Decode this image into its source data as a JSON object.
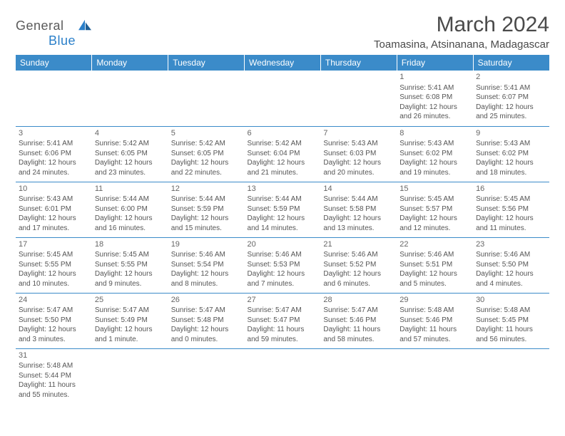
{
  "logo": {
    "text1": "General",
    "text2": "Blue"
  },
  "title": "March 2024",
  "location": "Toamasina, Atsinanana, Madagascar",
  "header_bg": "#3b8bc9",
  "header_fg": "#ffffff",
  "border_color": "#3b8bc9",
  "text_color": "#555555",
  "weekdays": [
    "Sunday",
    "Monday",
    "Tuesday",
    "Wednesday",
    "Thursday",
    "Friday",
    "Saturday"
  ],
  "weeks": [
    [
      null,
      null,
      null,
      null,
      null,
      {
        "d": "1",
        "sr": "Sunrise: 5:41 AM",
        "ss": "Sunset: 6:08 PM",
        "dl1": "Daylight: 12 hours",
        "dl2": "and 26 minutes."
      },
      {
        "d": "2",
        "sr": "Sunrise: 5:41 AM",
        "ss": "Sunset: 6:07 PM",
        "dl1": "Daylight: 12 hours",
        "dl2": "and 25 minutes."
      }
    ],
    [
      {
        "d": "3",
        "sr": "Sunrise: 5:41 AM",
        "ss": "Sunset: 6:06 PM",
        "dl1": "Daylight: 12 hours",
        "dl2": "and 24 minutes."
      },
      {
        "d": "4",
        "sr": "Sunrise: 5:42 AM",
        "ss": "Sunset: 6:05 PM",
        "dl1": "Daylight: 12 hours",
        "dl2": "and 23 minutes."
      },
      {
        "d": "5",
        "sr": "Sunrise: 5:42 AM",
        "ss": "Sunset: 6:05 PM",
        "dl1": "Daylight: 12 hours",
        "dl2": "and 22 minutes."
      },
      {
        "d": "6",
        "sr": "Sunrise: 5:42 AM",
        "ss": "Sunset: 6:04 PM",
        "dl1": "Daylight: 12 hours",
        "dl2": "and 21 minutes."
      },
      {
        "d": "7",
        "sr": "Sunrise: 5:43 AM",
        "ss": "Sunset: 6:03 PM",
        "dl1": "Daylight: 12 hours",
        "dl2": "and 20 minutes."
      },
      {
        "d": "8",
        "sr": "Sunrise: 5:43 AM",
        "ss": "Sunset: 6:02 PM",
        "dl1": "Daylight: 12 hours",
        "dl2": "and 19 minutes."
      },
      {
        "d": "9",
        "sr": "Sunrise: 5:43 AM",
        "ss": "Sunset: 6:02 PM",
        "dl1": "Daylight: 12 hours",
        "dl2": "and 18 minutes."
      }
    ],
    [
      {
        "d": "10",
        "sr": "Sunrise: 5:43 AM",
        "ss": "Sunset: 6:01 PM",
        "dl1": "Daylight: 12 hours",
        "dl2": "and 17 minutes."
      },
      {
        "d": "11",
        "sr": "Sunrise: 5:44 AM",
        "ss": "Sunset: 6:00 PM",
        "dl1": "Daylight: 12 hours",
        "dl2": "and 16 minutes."
      },
      {
        "d": "12",
        "sr": "Sunrise: 5:44 AM",
        "ss": "Sunset: 5:59 PM",
        "dl1": "Daylight: 12 hours",
        "dl2": "and 15 minutes."
      },
      {
        "d": "13",
        "sr": "Sunrise: 5:44 AM",
        "ss": "Sunset: 5:59 PM",
        "dl1": "Daylight: 12 hours",
        "dl2": "and 14 minutes."
      },
      {
        "d": "14",
        "sr": "Sunrise: 5:44 AM",
        "ss": "Sunset: 5:58 PM",
        "dl1": "Daylight: 12 hours",
        "dl2": "and 13 minutes."
      },
      {
        "d": "15",
        "sr": "Sunrise: 5:45 AM",
        "ss": "Sunset: 5:57 PM",
        "dl1": "Daylight: 12 hours",
        "dl2": "and 12 minutes."
      },
      {
        "d": "16",
        "sr": "Sunrise: 5:45 AM",
        "ss": "Sunset: 5:56 PM",
        "dl1": "Daylight: 12 hours",
        "dl2": "and 11 minutes."
      }
    ],
    [
      {
        "d": "17",
        "sr": "Sunrise: 5:45 AM",
        "ss": "Sunset: 5:55 PM",
        "dl1": "Daylight: 12 hours",
        "dl2": "and 10 minutes."
      },
      {
        "d": "18",
        "sr": "Sunrise: 5:45 AM",
        "ss": "Sunset: 5:55 PM",
        "dl1": "Daylight: 12 hours",
        "dl2": "and 9 minutes."
      },
      {
        "d": "19",
        "sr": "Sunrise: 5:46 AM",
        "ss": "Sunset: 5:54 PM",
        "dl1": "Daylight: 12 hours",
        "dl2": "and 8 minutes."
      },
      {
        "d": "20",
        "sr": "Sunrise: 5:46 AM",
        "ss": "Sunset: 5:53 PM",
        "dl1": "Daylight: 12 hours",
        "dl2": "and 7 minutes."
      },
      {
        "d": "21",
        "sr": "Sunrise: 5:46 AM",
        "ss": "Sunset: 5:52 PM",
        "dl1": "Daylight: 12 hours",
        "dl2": "and 6 minutes."
      },
      {
        "d": "22",
        "sr": "Sunrise: 5:46 AM",
        "ss": "Sunset: 5:51 PM",
        "dl1": "Daylight: 12 hours",
        "dl2": "and 5 minutes."
      },
      {
        "d": "23",
        "sr": "Sunrise: 5:46 AM",
        "ss": "Sunset: 5:50 PM",
        "dl1": "Daylight: 12 hours",
        "dl2": "and 4 minutes."
      }
    ],
    [
      {
        "d": "24",
        "sr": "Sunrise: 5:47 AM",
        "ss": "Sunset: 5:50 PM",
        "dl1": "Daylight: 12 hours",
        "dl2": "and 3 minutes."
      },
      {
        "d": "25",
        "sr": "Sunrise: 5:47 AM",
        "ss": "Sunset: 5:49 PM",
        "dl1": "Daylight: 12 hours",
        "dl2": "and 1 minute."
      },
      {
        "d": "26",
        "sr": "Sunrise: 5:47 AM",
        "ss": "Sunset: 5:48 PM",
        "dl1": "Daylight: 12 hours",
        "dl2": "and 0 minutes."
      },
      {
        "d": "27",
        "sr": "Sunrise: 5:47 AM",
        "ss": "Sunset: 5:47 PM",
        "dl1": "Daylight: 11 hours",
        "dl2": "and 59 minutes."
      },
      {
        "d": "28",
        "sr": "Sunrise: 5:47 AM",
        "ss": "Sunset: 5:46 PM",
        "dl1": "Daylight: 11 hours",
        "dl2": "and 58 minutes."
      },
      {
        "d": "29",
        "sr": "Sunrise: 5:48 AM",
        "ss": "Sunset: 5:46 PM",
        "dl1": "Daylight: 11 hours",
        "dl2": "and 57 minutes."
      },
      {
        "d": "30",
        "sr": "Sunrise: 5:48 AM",
        "ss": "Sunset: 5:45 PM",
        "dl1": "Daylight: 11 hours",
        "dl2": "and 56 minutes."
      }
    ],
    [
      {
        "d": "31",
        "sr": "Sunrise: 5:48 AM",
        "ss": "Sunset: 5:44 PM",
        "dl1": "Daylight: 11 hours",
        "dl2": "and 55 minutes."
      },
      null,
      null,
      null,
      null,
      null,
      null
    ]
  ]
}
